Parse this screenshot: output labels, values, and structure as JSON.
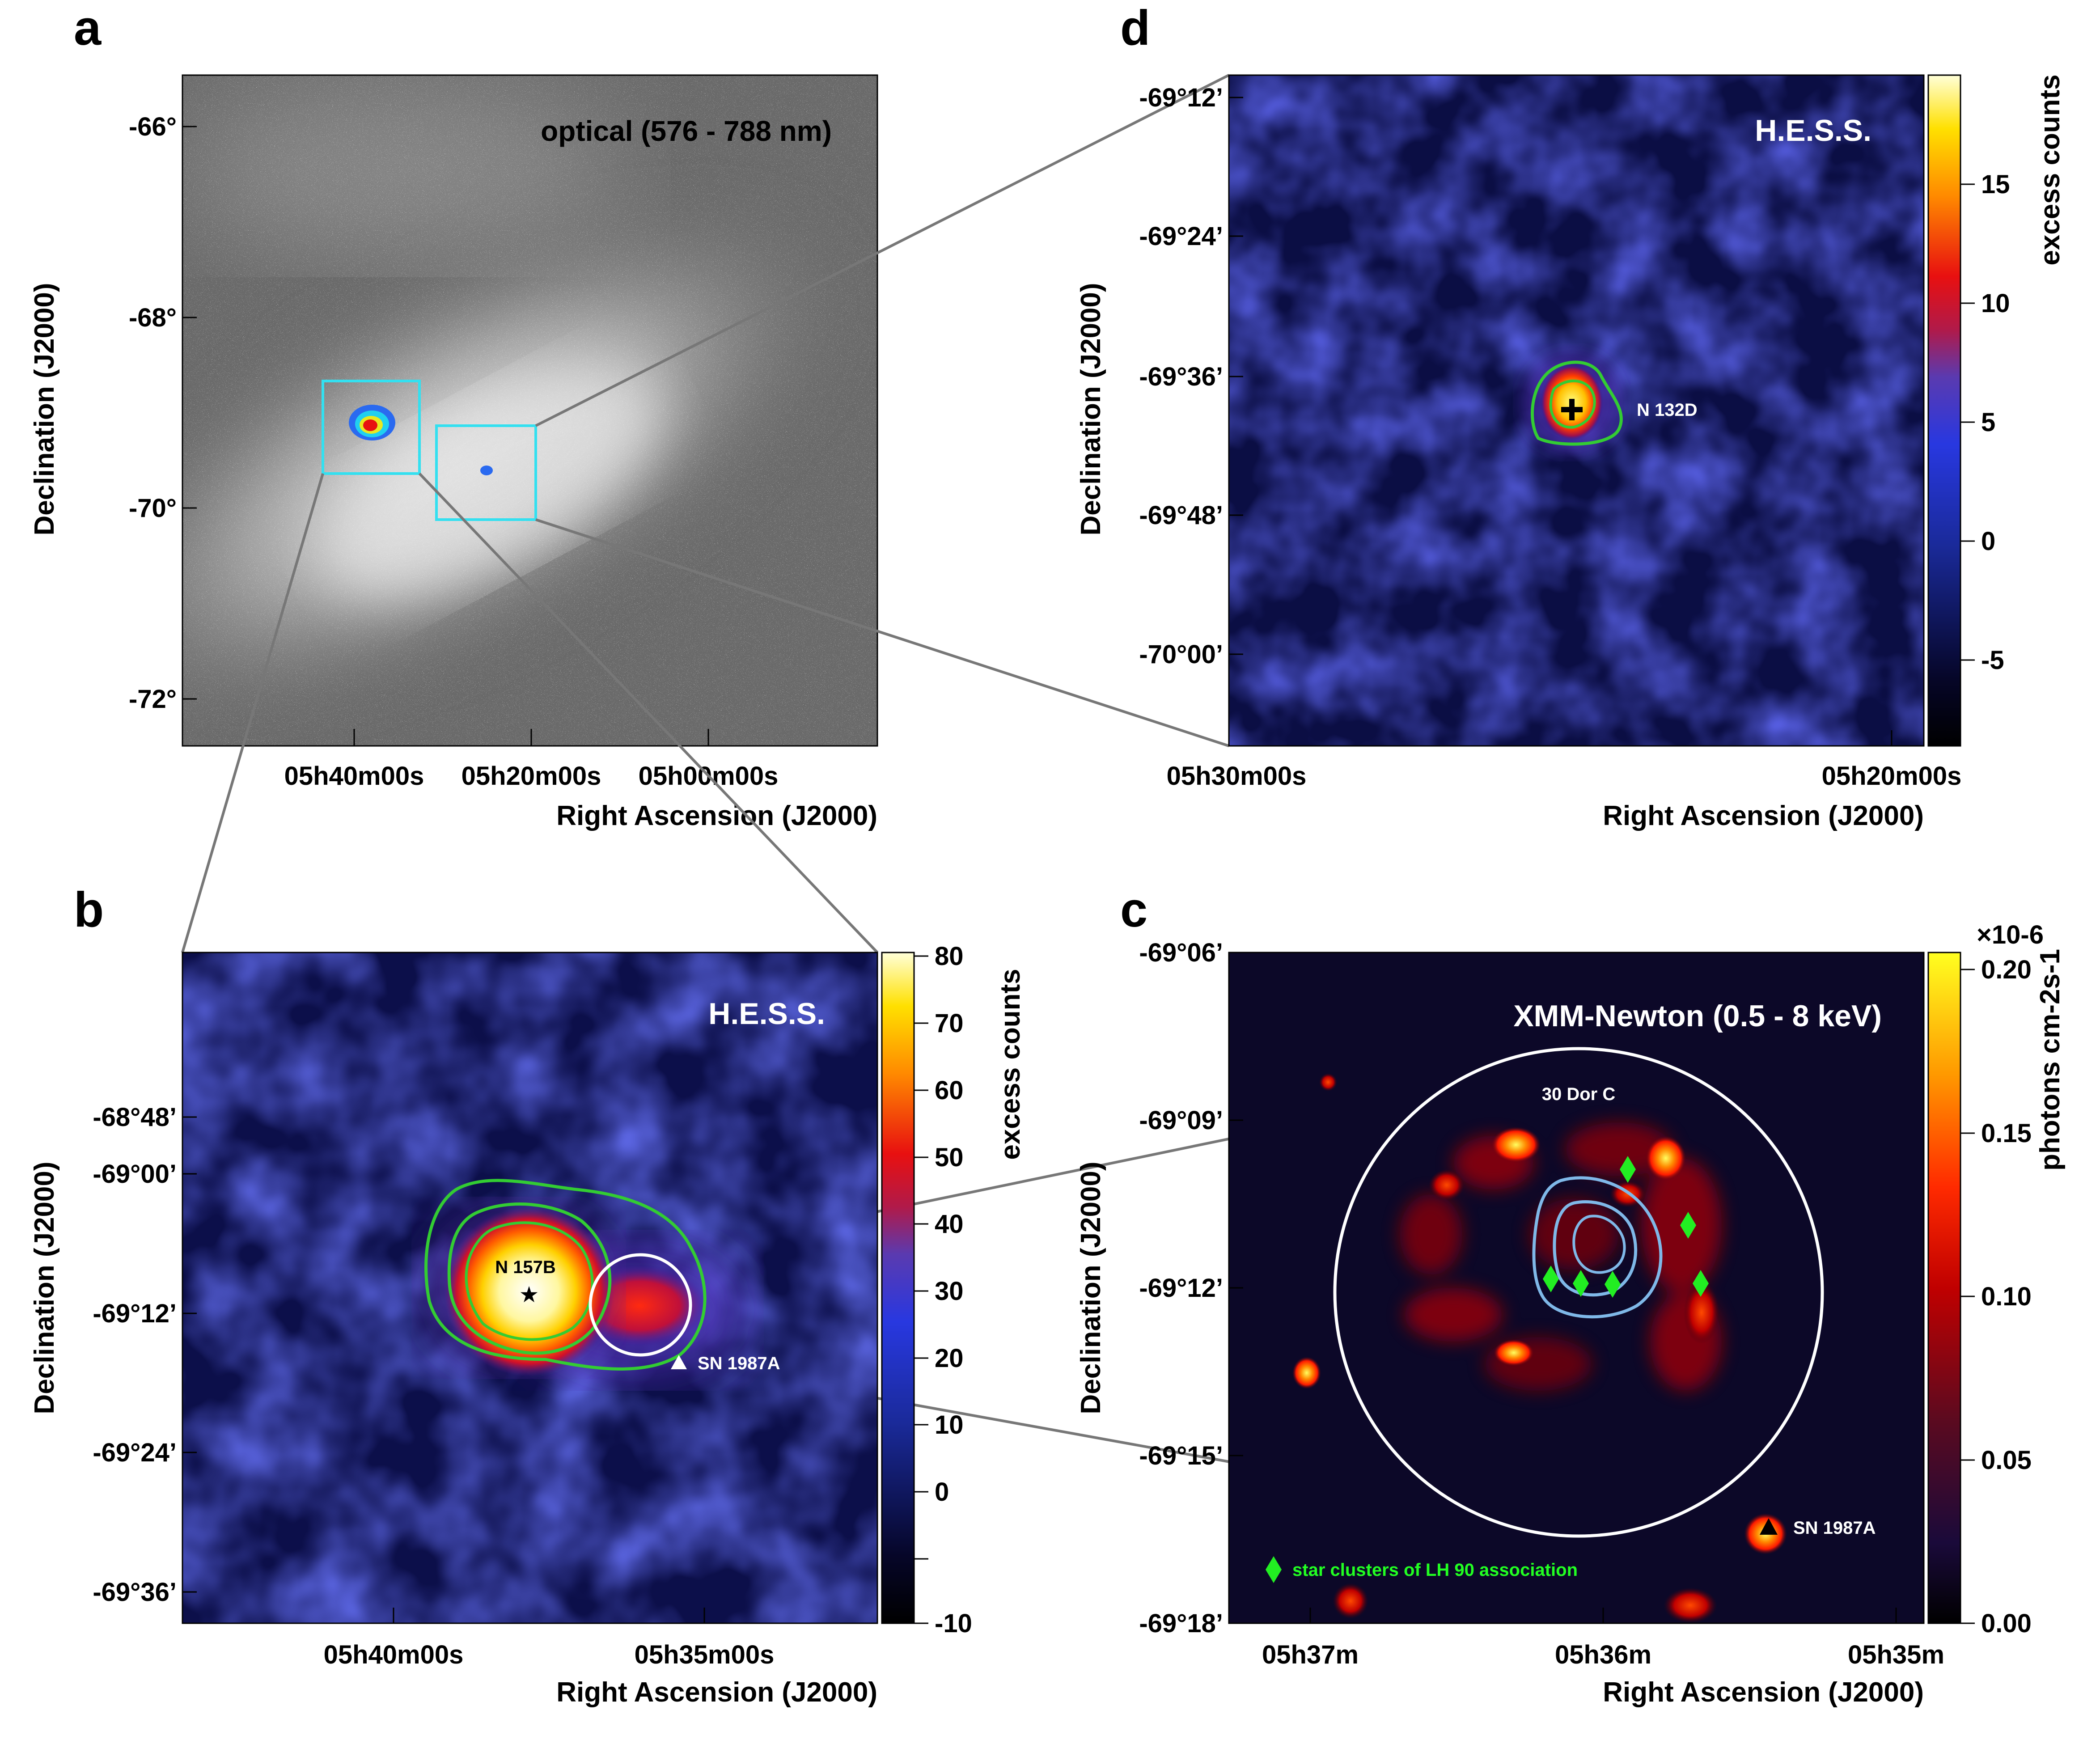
{
  "figure": {
    "panel_a": {
      "letter": "a",
      "title": "optical (576 - 788 nm)",
      "ylabel": "Declination (J2000)",
      "xlabel": "Right Ascension (J2000)",
      "yticks": [
        "-66°",
        "-68°",
        "-70°",
        "-72°"
      ],
      "xticks": [
        "05h40m00s",
        "05h20m00s",
        "05h00m00s"
      ]
    },
    "panel_b": {
      "letter": "b",
      "title": "H.E.S.S.",
      "ylabel": "Declination (J2000)",
      "xlabel": "Right Ascension (J2000)",
      "yticks": [
        "-68°48’",
        "-69°00’",
        "-69°12’",
        "-69°24’",
        "-69°36’"
      ],
      "xticks": [
        "05h40m00s",
        "05h35m00s"
      ],
      "colorbar_label": "excess counts",
      "colorbar_ticks": [
        "80",
        "70",
        "60",
        "50",
        "40",
        "30",
        "20",
        "10",
        "0",
        "-10"
      ],
      "source_label": "N 157B",
      "sn_label": "SN 1987A"
    },
    "panel_c": {
      "letter": "c",
      "title": "XMM-Newton (0.5 - 8 keV)",
      "ylabel": "Declination (J2000)",
      "xlabel": "Right Ascension (J2000)",
      "yticks": [
        "-69°06’",
        "-69°09’",
        "-69°12’",
        "-69°15’",
        "-69°18’"
      ],
      "xticks": [
        "05h37m",
        "05h36m",
        "05h35m"
      ],
      "colorbar_label": "photons cm-2s-1",
      "colorbar_scale": "×10-6",
      "colorbar_ticks": [
        "0.20",
        "0.15",
        "0.10",
        "0.05",
        "0.00"
      ],
      "circle_label": "30 Dor C",
      "sn_label": "SN 1987A",
      "legend_label": "star clusters of LH 90 association"
    },
    "panel_d": {
      "letter": "d",
      "title": "H.E.S.S.",
      "ylabel": "Declination (J2000)",
      "xlabel": "Right Ascension (J2000)",
      "yticks": [
        "-69°12’",
        "-69°24’",
        "-69°36’",
        "-69°48’",
        "-70°00’"
      ],
      "xticks": [
        "05h30m00s",
        "05h20m00s"
      ],
      "colorbar_label": "excess counts",
      "colorbar_ticks": [
        "15",
        "10",
        "5",
        "0",
        "-5"
      ],
      "source_label": "N 132D"
    },
    "colors": {
      "cyan_box": "#33e0f0",
      "green_contour": "#33cc33",
      "light_blue_contour": "#7fb8e8",
      "diamond_green": "#22ee22",
      "zoom_line": "#777777"
    }
  }
}
